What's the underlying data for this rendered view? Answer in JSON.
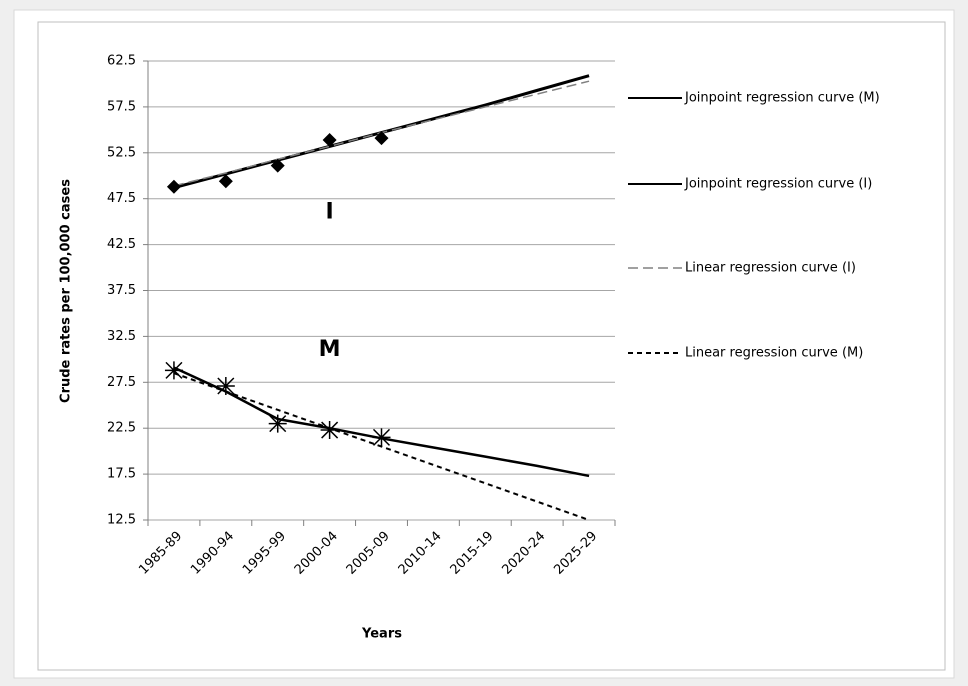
{
  "chart_data": {
    "type": "line",
    "categories": [
      "1985-89",
      "1990-94",
      "1995-99",
      "2000-04",
      "2005-09",
      "2010-14",
      "2015-19",
      "2020-24",
      "2025-29"
    ],
    "series": [
      {
        "name": "Joinpoint regression curve (M)",
        "color": "#000000",
        "style": "solid",
        "width": 2.5,
        "values": [
          29.1,
          26.5,
          23.5,
          22.5,
          21.4,
          20.4,
          19.4,
          18.4,
          17.3
        ]
      },
      {
        "name": "Joinpoint regression curve (I)",
        "color": "#000000",
        "style": "solid",
        "width": 3,
        "values": [
          48.7,
          50.2,
          51.7,
          53.2,
          54.7,
          56.2,
          57.7,
          59.3,
          60.9
        ]
      },
      {
        "name": "Linear regression curve (I)",
        "color": "#808080",
        "style": "dashed",
        "width": 1.5,
        "values": [
          48.9,
          50.3,
          51.8,
          53.2,
          54.7,
          56.1,
          57.5,
          58.9,
          60.3
        ]
      },
      {
        "name": "Linear regression curve (M)",
        "color": "#000000",
        "style": "dotted",
        "width": 2,
        "values": [
          28.5,
          26.5,
          24.5,
          22.5,
          20.5,
          18.5,
          16.5,
          14.5,
          12.5
        ]
      },
      {
        "color": "#000000",
        "marker": "diamond",
        "values": [
          48.8,
          49.4,
          51.1,
          53.9,
          54.1,
          null,
          null,
          null,
          null
        ]
      },
      {
        "color": "#000000",
        "marker": "star",
        "values": [
          28.8,
          27.1,
          23.0,
          22.3,
          21.5,
          null,
          null,
          null,
          null
        ]
      }
    ],
    "annotations": [
      {
        "text": "I",
        "x": "2000-04",
        "y": 46
      },
      {
        "text": "M",
        "x": "2000-04",
        "y": 31
      }
    ],
    "xlabel": "Years",
    "ylabel": "Crude rates per 100,000 cases",
    "ylim": [
      12.5,
      62.5
    ],
    "yticks": [
      12.5,
      17.5,
      22.5,
      27.5,
      32.5,
      37.5,
      42.5,
      47.5,
      52.5,
      57.5,
      62.5
    ],
    "grid": true,
    "legend": "right"
  }
}
